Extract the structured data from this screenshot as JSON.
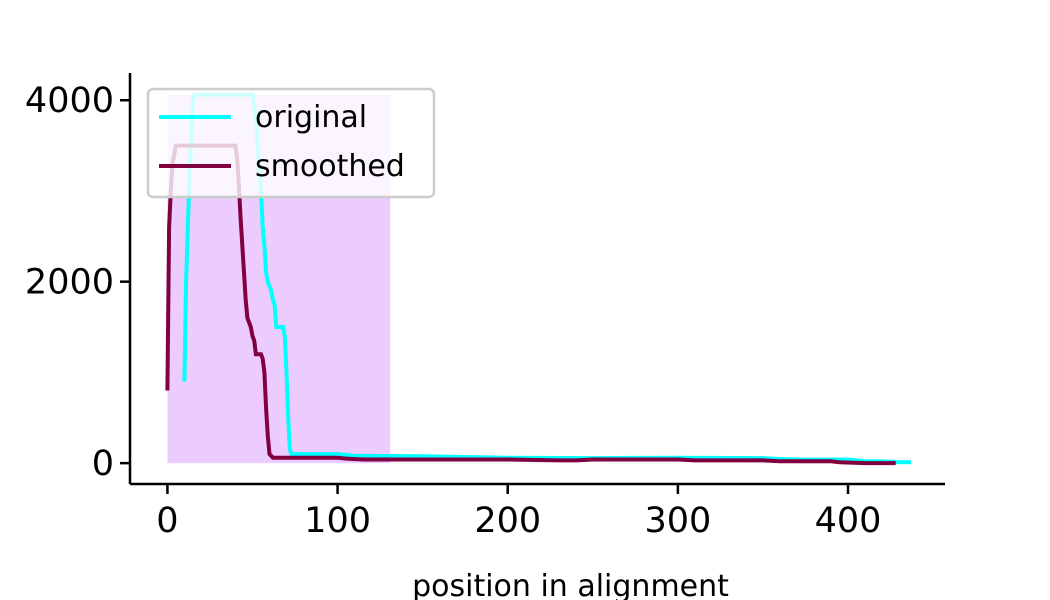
{
  "chart_data": {
    "type": "line",
    "title": "",
    "xlabel": "position in alignment",
    "ylabel": "",
    "xlim": [
      -22,
      457
    ],
    "ylim": [
      -230,
      4300
    ],
    "xticks": [
      0,
      100,
      200,
      300,
      400
    ],
    "yticks": [
      0,
      2000,
      4000
    ],
    "grid": false,
    "legend_position": "upper-left",
    "colors": {
      "original": "#00ffff",
      "smoothed": "#800040",
      "shaded_region": "#eccbfe"
    },
    "shaded_region": {
      "x_start": 0,
      "x_end": 131,
      "y_start": 0,
      "y_end": 4060
    },
    "series": [
      {
        "name": "original",
        "x": [
          10,
          11,
          13,
          15,
          16,
          50,
          52,
          53,
          55,
          56,
          57,
          58,
          59,
          60,
          61,
          62,
          63,
          64,
          65,
          66,
          67,
          68,
          69,
          70,
          71,
          72,
          73,
          74,
          100,
          110,
          120,
          150,
          200,
          250,
          300,
          350,
          360,
          370,
          400,
          410,
          420,
          430,
          437
        ],
        "y": [
          900,
          2000,
          3200,
          4000,
          4060,
          4060,
          3800,
          3500,
          3000,
          2600,
          2400,
          2100,
          2000,
          1950,
          1900,
          1800,
          1750,
          1500,
          1500,
          1500,
          1500,
          1500,
          1400,
          1000,
          500,
          150,
          100,
          100,
          100,
          80,
          80,
          75,
          60,
          55,
          60,
          55,
          45,
          40,
          40,
          20,
          20,
          10,
          10
        ]
      },
      {
        "name": "smoothed",
        "x": [
          0,
          1,
          2,
          3,
          5,
          40,
          41,
          42,
          43,
          44,
          45,
          46,
          47,
          48,
          49,
          50,
          51,
          52,
          53,
          54,
          55,
          56,
          57,
          58,
          59,
          60,
          61,
          62,
          63,
          64,
          65,
          70,
          100,
          105,
          115,
          120,
          150,
          200,
          230,
          240,
          250,
          300,
          310,
          350,
          360,
          390,
          395,
          410,
          428
        ],
        "y": [
          800,
          2600,
          3000,
          3300,
          3500,
          3500,
          3350,
          3050,
          2700,
          2400,
          2100,
          1800,
          1600,
          1550,
          1500,
          1400,
          1350,
          1200,
          1200,
          1200,
          1200,
          1150,
          1000,
          600,
          300,
          100,
          80,
          60,
          60,
          60,
          60,
          60,
          60,
          50,
          40,
          40,
          40,
          40,
          30,
          30,
          40,
          40,
          30,
          30,
          20,
          20,
          10,
          0,
          0
        ]
      }
    ]
  }
}
